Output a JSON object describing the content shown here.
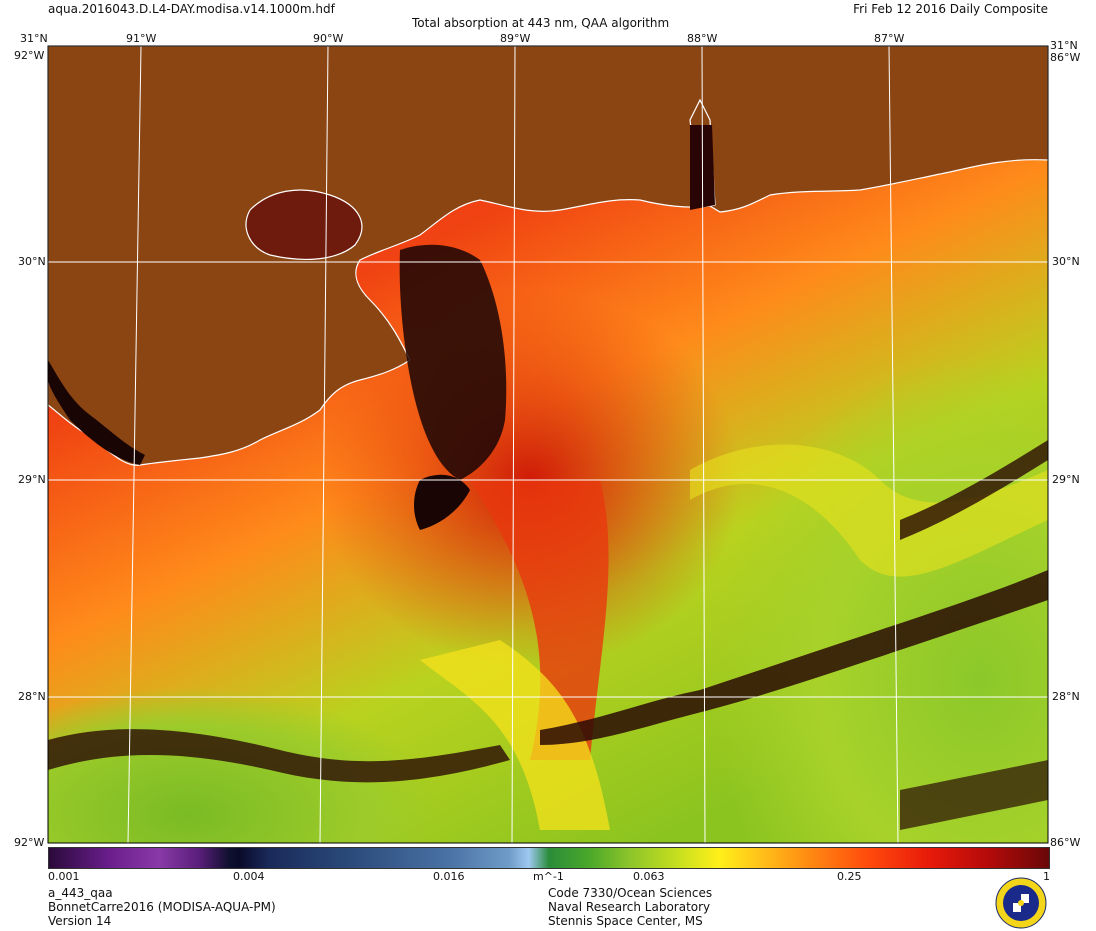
{
  "header": {
    "filename": "aqua.2016043.D.L4-DAY.modisa.v14.1000m.hdf",
    "title": "Total absorption at 443 nm, QAA algorithm",
    "date": "Fri Feb 12 2016 Daily Composite"
  },
  "map": {
    "lat_labels": [
      "31°N",
      "30°N",
      "29°N",
      "28°N"
    ],
    "lon_labels": [
      "91°W",
      "90°W",
      "89°W",
      "88°W",
      "87°W"
    ],
    "corner_labels": [
      "31°N",
      "92°W",
      "86°W",
      "89°W"
    ],
    "colors": {
      "land": "#8b4513",
      "coast": "#ffffff",
      "grid": "#ffffff"
    }
  },
  "colorbar": {
    "ticks": [
      "0.001",
      "0.004",
      "0.016",
      "m^-1",
      "0.063",
      "0.25",
      "1"
    ],
    "units": "m^-1",
    "scale": "log"
  },
  "footer": {
    "left": [
      "a_443_qaa",
      "BonnetCarre2016 (MODISA-AQUA-PM)",
      "Version 14"
    ],
    "center": [
      "Code 7330/Ocean Sciences",
      "Naval Research Laboratory",
      "Stennis Space Center, MS"
    ]
  },
  "logo": {
    "name": "nrl-seal-icon"
  }
}
